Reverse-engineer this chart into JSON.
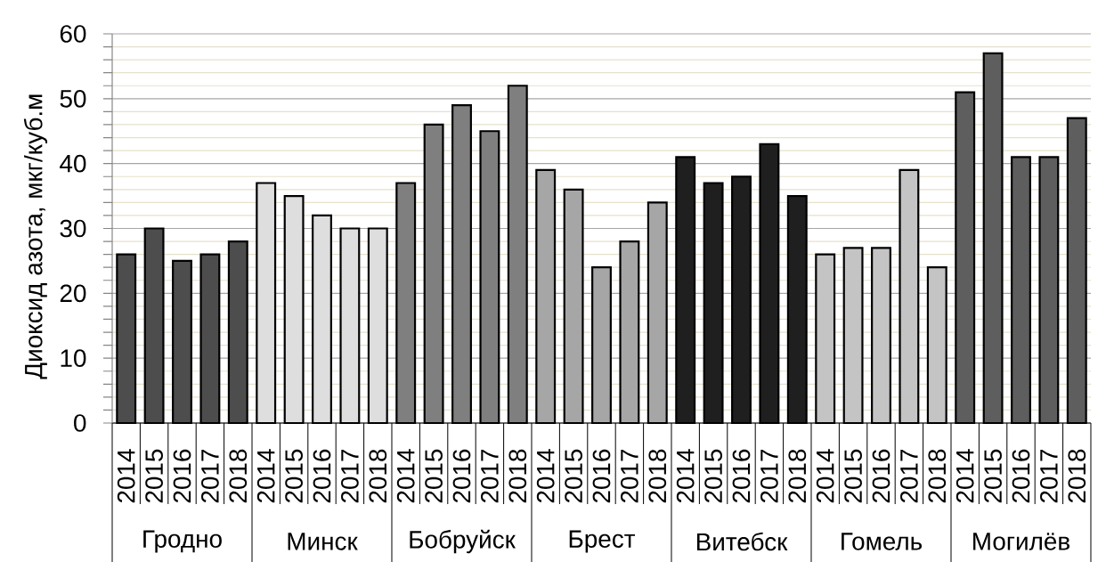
{
  "chart_data": {
    "type": "bar",
    "ylabel": "Диоксид азота, мкг/куб.м",
    "categories": [
      "2014",
      "2015",
      "2016",
      "2017",
      "2018",
      "2014",
      "2015",
      "2016",
      "2017",
      "2018",
      "2014",
      "2015",
      "2016",
      "2017",
      "2018",
      "2014",
      "2015",
      "2016",
      "2017",
      "2018",
      "2014",
      "2015",
      "2016",
      "2017",
      "2018",
      "2014",
      "2015",
      "2016",
      "2017",
      "2018",
      "2014",
      "2015",
      "2016",
      "2017",
      "2018"
    ],
    "values": [
      26,
      30,
      25,
      26,
      28,
      37,
      35,
      32,
      30,
      30,
      37,
      46,
      49,
      45,
      52,
      39,
      36,
      24,
      28,
      34,
      41,
      37,
      38,
      43,
      35,
      26,
      27,
      27,
      39,
      24,
      51,
      57,
      41,
      41,
      47
    ],
    "colors": [
      "#4d4d4d",
      "#4d4d4d",
      "#4d4d4d",
      "#4d4d4d",
      "#4d4d4d",
      "#dedede",
      "#dedede",
      "#dedede",
      "#dedede",
      "#dedede",
      "#7f7f7f",
      "#7f7f7f",
      "#7f7f7f",
      "#7f7f7f",
      "#7f7f7f",
      "#a6a6a6",
      "#a6a6a6",
      "#a6a6a6",
      "#a6a6a6",
      "#a6a6a6",
      "#1f1f1f",
      "#1f1f1f",
      "#1f1f1f",
      "#1f1f1f",
      "#1f1f1f",
      "#c4c4c4",
      "#c4c4c4",
      "#c4c4c4",
      "#c4c4c4",
      "#c4c4c4",
      "#5e5e5e",
      "#5e5e5e",
      "#5e5e5e",
      "#5e5e5e",
      "#5e5e5e"
    ],
    "annotations": [
      "Гродно",
      "Минск",
      "Бобруйск",
      "Брест",
      "Витебск",
      "Гомель",
      "Могилёв"
    ],
    "ylim": [
      0,
      60
    ],
    "yticks": [
      0,
      {
        "value": 2,
        "label": null
      },
      {
        "value": 4,
        "label": null
      },
      {
        "value": 6,
        "label": null
      },
      {
        "value": 8,
        "label": null
      },
      10,
      {
        "value": 12,
        "label": null
      },
      {
        "value": 14,
        "label": null
      },
      {
        "value": 16,
        "label": null
      },
      {
        "value": 18,
        "label": null
      },
      20,
      {
        "value": 22,
        "label": null
      },
      {
        "value": 24,
        "label": null
      },
      {
        "value": 26,
        "label": null
      },
      {
        "value": 28,
        "label": null
      },
      30,
      {
        "value": 32,
        "label": null
      },
      {
        "value": 34,
        "label": null
      },
      {
        "value": 36,
        "label": null
      },
      {
        "value": 38,
        "label": null
      },
      40,
      {
        "value": 42,
        "label": null
      },
      {
        "value": 44,
        "label": null
      },
      {
        "value": 46,
        "label": null
      },
      {
        "value": 48,
        "label": null
      },
      50,
      {
        "value": 52,
        "label": null
      },
      {
        "value": 54,
        "label": null
      },
      {
        "value": 56,
        "label": null
      },
      {
        "value": 58,
        "label": null
      },
      60
    ],
    "grid": "y"
  }
}
